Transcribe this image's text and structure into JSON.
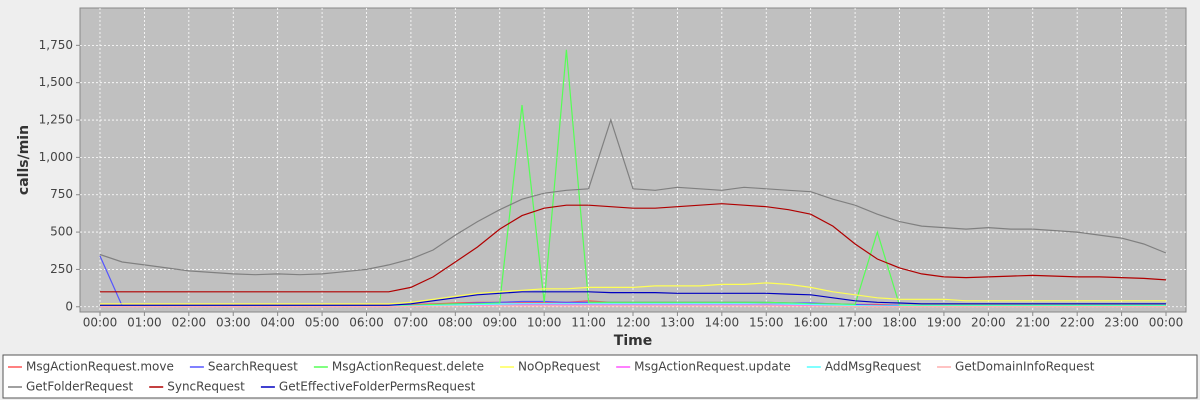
{
  "chart_data": {
    "type": "line",
    "x_label": "Time",
    "y_label": "calls/min",
    "grid": true,
    "legend": "bottom",
    "background": "#c0c0c0",
    "x": [
      0,
      0.5,
      1,
      1.5,
      2,
      2.5,
      3,
      3.5,
      4,
      4.5,
      5,
      5.5,
      6,
      6.5,
      7,
      7.5,
      8,
      8.5,
      9,
      9.5,
      10,
      10.5,
      11,
      11.5,
      12,
      12.5,
      13,
      13.5,
      14,
      14.5,
      15,
      15.5,
      16,
      16.5,
      17,
      17.5,
      18,
      18.5,
      19,
      19.5,
      20,
      20.5,
      21,
      21.5,
      22,
      22.5,
      23,
      23.5,
      24
    ],
    "xlim": [
      -0.45,
      24.45
    ],
    "xticks": [
      {
        "value": 0,
        "label": "00:00"
      },
      {
        "value": 1,
        "label": "01:00"
      },
      {
        "value": 2,
        "label": "02:00"
      },
      {
        "value": 3,
        "label": "03:00"
      },
      {
        "value": 4,
        "label": "04:00"
      },
      {
        "value": 5,
        "label": "05:00"
      },
      {
        "value": 6,
        "label": "06:00"
      },
      {
        "value": 7,
        "label": "07:00"
      },
      {
        "value": 8,
        "label": "08:00"
      },
      {
        "value": 9,
        "label": "09:00"
      },
      {
        "value": 10,
        "label": "10:00"
      },
      {
        "value": 11,
        "label": "11:00"
      },
      {
        "value": 12,
        "label": "12:00"
      },
      {
        "value": 13,
        "label": "13:00"
      },
      {
        "value": 14,
        "label": "14:00"
      },
      {
        "value": 15,
        "label": "15:00"
      },
      {
        "value": 16,
        "label": "16:00"
      },
      {
        "value": 17,
        "label": "17:00"
      },
      {
        "value": 18,
        "label": "18:00"
      },
      {
        "value": 19,
        "label": "19:00"
      },
      {
        "value": 20,
        "label": "20:00"
      },
      {
        "value": 21,
        "label": "21:00"
      },
      {
        "value": 22,
        "label": "22:00"
      },
      {
        "value": 23,
        "label": "23:00"
      },
      {
        "value": 24,
        "label": "00:00"
      }
    ],
    "ylim": [
      -35,
      2000
    ],
    "yticks": [
      0,
      250,
      500,
      750,
      {
        "value": 1000,
        "label": "1,000"
      },
      {
        "value": 1250,
        "label": "1,250"
      },
      {
        "value": 1500,
        "label": "1,500"
      },
      {
        "value": 1750,
        "label": "1,750"
      }
    ],
    "series": [
      {
        "name": "MsgActionRequest.move",
        "color": "#ff5555",
        "values": [
          10,
          10,
          10,
          10,
          10,
          10,
          10,
          10,
          10,
          10,
          10,
          10,
          10,
          10,
          15,
          20,
          25,
          30,
          30,
          30,
          30,
          30,
          40,
          30,
          30,
          30,
          30,
          30,
          30,
          30,
          25,
          25,
          20,
          20,
          15,
          15,
          10,
          10,
          10,
          10,
          10,
          10,
          10,
          10,
          10,
          10,
          10,
          10,
          10
        ]
      },
      {
        "name": "SearchRequest",
        "color": "#5555ff",
        "values": [
          340,
          5,
          5,
          5,
          5,
          5,
          5,
          5,
          5,
          5,
          5,
          5,
          5,
          5,
          10,
          15,
          20,
          25,
          30,
          35,
          35,
          30,
          30,
          30,
          30,
          30,
          30,
          30,
          30,
          30,
          30,
          25,
          25,
          20,
          15,
          10,
          10,
          8,
          8,
          8,
          8,
          8,
          8,
          8,
          8,
          8,
          8,
          8,
          8
        ]
      },
      {
        "name": "MsgActionRequest.delete",
        "color": "#55ff55",
        "values": [
          5,
          5,
          5,
          5,
          5,
          5,
          5,
          5,
          5,
          5,
          5,
          5,
          5,
          5,
          10,
          15,
          20,
          20,
          25,
          1350,
          30,
          1720,
          30,
          30,
          30,
          30,
          30,
          30,
          30,
          30,
          30,
          25,
          20,
          20,
          15,
          500,
          10,
          10,
          10,
          10,
          10,
          10,
          10,
          10,
          10,
          10,
          10,
          10,
          10
        ]
      },
      {
        "name": "NoOpRequest",
        "color": "#ffff55",
        "values": [
          20,
          20,
          20,
          20,
          20,
          20,
          20,
          20,
          20,
          20,
          20,
          20,
          20,
          20,
          30,
          50,
          70,
          90,
          100,
          110,
          120,
          120,
          130,
          130,
          130,
          140,
          140,
          140,
          150,
          150,
          160,
          150,
          130,
          100,
          80,
          60,
          50,
          50,
          50,
          40,
          40,
          40,
          40,
          40,
          40,
          40,
          40,
          40,
          40
        ]
      },
      {
        "name": "MsgActionRequest.update",
        "color": "#ff55ff",
        "values": [
          2,
          2,
          2,
          2,
          2,
          2,
          2,
          2,
          2,
          2,
          2,
          2,
          2,
          2,
          5,
          8,
          10,
          12,
          15,
          15,
          15,
          15,
          15,
          15,
          15,
          15,
          15,
          15,
          15,
          15,
          15,
          12,
          10,
          8,
          5,
          5,
          3,
          3,
          3,
          3,
          3,
          3,
          3,
          3,
          3,
          3,
          3,
          3,
          3
        ]
      },
      {
        "name": "AddMsgRequest",
        "color": "#55ffff",
        "values": [
          3,
          3,
          3,
          3,
          3,
          3,
          3,
          3,
          3,
          3,
          3,
          3,
          3,
          3,
          5,
          8,
          12,
          15,
          18,
          20,
          20,
          20,
          20,
          20,
          20,
          20,
          20,
          20,
          20,
          20,
          20,
          18,
          15,
          12,
          8,
          6,
          5,
          5,
          5,
          5,
          5,
          5,
          5,
          5,
          5,
          5,
          5,
          5,
          5
        ]
      },
      {
        "name": "GetDomainInfoRequest",
        "color": "#ffafaf",
        "values": [
          1,
          1,
          1,
          1,
          1,
          1,
          1,
          1,
          1,
          1,
          1,
          1,
          1,
          1,
          2,
          3,
          4,
          5,
          5,
          5,
          5,
          5,
          5,
          5,
          5,
          5,
          5,
          5,
          5,
          5,
          5,
          5,
          4,
          3,
          2,
          2,
          1,
          1,
          1,
          1,
          1,
          1,
          1,
          1,
          1,
          1,
          1,
          1,
          1
        ]
      },
      {
        "name": "GetFolderRequest",
        "color": "#808080",
        "values": [
          350,
          300,
          280,
          260,
          240,
          230,
          220,
          215,
          220,
          215,
          220,
          235,
          250,
          280,
          320,
          380,
          480,
          570,
          650,
          720,
          760,
          780,
          790,
          1250,
          790,
          780,
          800,
          790,
          780,
          800,
          790,
          780,
          770,
          720,
          680,
          620,
          570,
          540,
          530,
          520,
          530,
          520,
          520,
          510,
          500,
          480,
          460,
          420,
          360
        ]
      },
      {
        "name": "SyncRequest",
        "color": "#b00000",
        "values": [
          100,
          100,
          100,
          100,
          100,
          100,
          100,
          100,
          100,
          100,
          100,
          100,
          100,
          100,
          130,
          200,
          300,
          400,
          520,
          610,
          660,
          680,
          680,
          670,
          660,
          660,
          670,
          680,
          690,
          680,
          670,
          650,
          620,
          540,
          420,
          320,
          260,
          220,
          200,
          195,
          200,
          205,
          210,
          205,
          200,
          200,
          195,
          190,
          180
        ]
      },
      {
        "name": "GetEffectiveFolderPermsRequest",
        "color": "#0000c0",
        "values": [
          10,
          10,
          10,
          10,
          10,
          10,
          10,
          10,
          10,
          10,
          10,
          10,
          10,
          10,
          20,
          40,
          60,
          80,
          90,
          100,
          100,
          100,
          100,
          95,
          95,
          95,
          90,
          90,
          90,
          90,
          90,
          85,
          80,
          60,
          40,
          30,
          25,
          20,
          20,
          20,
          20,
          20,
          20,
          20,
          20,
          20,
          20,
          20,
          20
        ]
      }
    ]
  }
}
